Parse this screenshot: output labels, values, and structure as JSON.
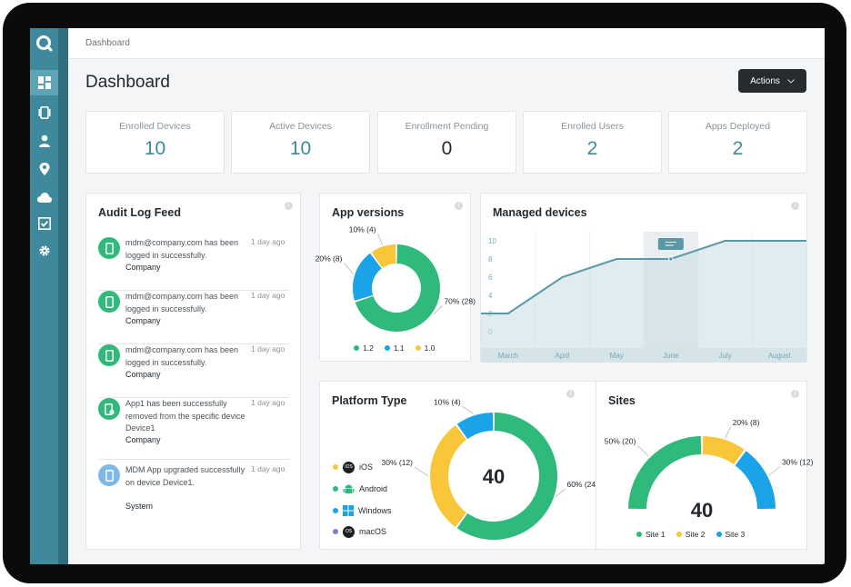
{
  "breadcrumb": "Dashboard",
  "page_title": "Dashboard",
  "actions_label": "Actions",
  "stats": [
    {
      "label": "Enrolled Devices",
      "value": "10"
    },
    {
      "label": "Active Devices",
      "value": "10"
    },
    {
      "label": "Enrollment Pending",
      "value": "0"
    },
    {
      "label": "Enrolled Users",
      "value": "2"
    },
    {
      "label": "Apps Deployed",
      "value": "2"
    }
  ],
  "audit": {
    "title": "Audit Log Feed",
    "items": [
      {
        "text": "mdm@company.com has been logged in successfully.",
        "org": "Company",
        "time": "1 day ago"
      },
      {
        "text": "mdm@company.com has been logged in successfully.",
        "org": "Company",
        "time": "1 day ago"
      },
      {
        "text": "mdm@company.com has been logged in successfully.",
        "org": "Company",
        "time": "1 day ago"
      },
      {
        "text": "App1 has been successfully removed from the specific device Device1",
        "org": "Company",
        "time": "1 day ago"
      },
      {
        "text": "MDM App upgraded successfully on device Device1.",
        "org": "System",
        "time": "1 day ago"
      }
    ]
  },
  "app_versions": {
    "title": "App versions",
    "legend": [
      "1.2",
      "1.1",
      "1.0"
    ],
    "colors": [
      "#2fba7c",
      "#1aa3e8",
      "#f9c63a"
    ]
  },
  "managed_devices": {
    "title": "Managed devices",
    "tooltip_icon": "tooltip-icon"
  },
  "platform": {
    "title": "Platform Type",
    "total": "40",
    "items": [
      {
        "label": "iOS",
        "icon": "apple-icon",
        "dot": "#f9c63a"
      },
      {
        "label": "Android",
        "icon": "android-icon",
        "dot": "#2fba7c"
      },
      {
        "label": "Windows",
        "icon": "windows-icon",
        "dot": "#1aa3e8"
      },
      {
        "label": "macOS",
        "icon": "macos-icon",
        "dot": "#7b7fd4"
      }
    ]
  },
  "sites": {
    "title": "Sites",
    "total": "40",
    "legend": [
      "Site 1",
      "Site 2",
      "Site 3"
    ],
    "colors": [
      "#2fba7c",
      "#f9c63a",
      "#1aa3e8"
    ]
  },
  "sidebar": {
    "icons": [
      "dashboard-icon",
      "devices-icon",
      "user-icon",
      "location-icon",
      "cloud-icon",
      "checklist-icon",
      "settings-icon"
    ]
  },
  "chart_data": [
    {
      "type": "pie",
      "title": "App versions",
      "categories": [
        "1.2",
        "1.1",
        "1.0"
      ],
      "values": [
        28,
        8,
        4
      ],
      "labels": [
        "70% (28)",
        "20% (8)",
        "10% (4)"
      ]
    },
    {
      "type": "area",
      "title": "Managed devices",
      "categories": [
        "March",
        "April",
        "May",
        "June",
        "July",
        "August"
      ],
      "series": [
        {
          "values": [
            2,
            6,
            8,
            8,
            10,
            10
          ]
        }
      ],
      "y_ticks": [
        "0",
        "2",
        "4",
        "6",
        "8",
        "10"
      ],
      "ylim": [
        0,
        10
      ],
      "highlight": "June"
    },
    {
      "type": "pie",
      "title": "Platform Type",
      "categories": [
        "Android",
        "iOS",
        "Windows"
      ],
      "values": [
        24,
        12,
        4
      ],
      "labels": [
        "60% (24)",
        "30% (12)",
        "10% (4)"
      ]
    },
    {
      "type": "pie",
      "title": "Sites",
      "categories": [
        "Site 1",
        "Site 2",
        "Site 3"
      ],
      "values": [
        20,
        8,
        12
      ],
      "labels": [
        "50% (20)",
        "20% (8)",
        "30% (12)"
      ]
    }
  ]
}
